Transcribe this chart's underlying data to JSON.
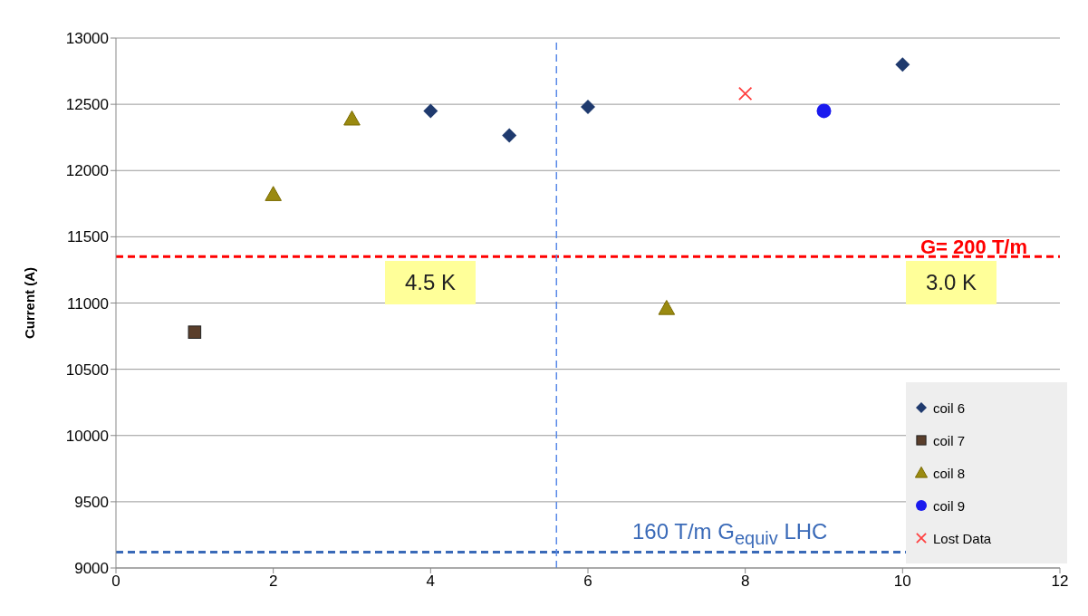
{
  "chart_data": {
    "type": "scatter",
    "ylabel": "Current (A)",
    "xlim": [
      0,
      12
    ],
    "xticks": [
      0,
      2,
      4,
      6,
      8,
      10,
      12
    ],
    "ylim": [
      9000,
      13000
    ],
    "yticks": [
      9000,
      9500,
      10000,
      10500,
      11000,
      11500,
      12000,
      12500,
      13000
    ],
    "grid": "y",
    "legend": "bottom right",
    "series": [
      {
        "name": "coil 6",
        "color": "#1f3a6e",
        "marker": "diamond",
        "x": [
          4,
          5,
          6,
          10
        ],
        "values": [
          12450,
          12265,
          12480,
          12800
        ]
      },
      {
        "name": "coil 7",
        "color": "#5a3e2b",
        "marker": "square",
        "x": [
          1
        ],
        "values": [
          10780
        ]
      },
      {
        "name": "coil 8",
        "color": "#9a8a10",
        "marker": "triangle",
        "x": [
          2,
          3,
          7
        ],
        "values": [
          11820,
          12390,
          10960
        ]
      },
      {
        "name": "coil 9",
        "color": "#1a1aee",
        "marker": "circle",
        "x": [
          9
        ],
        "values": [
          12450
        ]
      },
      {
        "name": "Lost Data",
        "color": "#ff4040",
        "marker": "cross",
        "x": [
          8
        ],
        "values": [
          12580
        ]
      }
    ],
    "ref_lines": [
      {
        "axis": "y",
        "value": 11350,
        "color": "#ff0000",
        "line_style": "dashed"
      },
      {
        "axis": "y",
        "value": 9120,
        "color": "#3a6ab8",
        "line_style": "dashed"
      },
      {
        "axis": "x",
        "value": 5.6,
        "color": "#5a8ae8",
        "line_style": "dashed"
      }
    ],
    "annotations": [
      "4.5 K",
      "3.0 K",
      "G= 200 T/m",
      "160 T/m G$_{equiv}$ LHC"
    ]
  }
}
